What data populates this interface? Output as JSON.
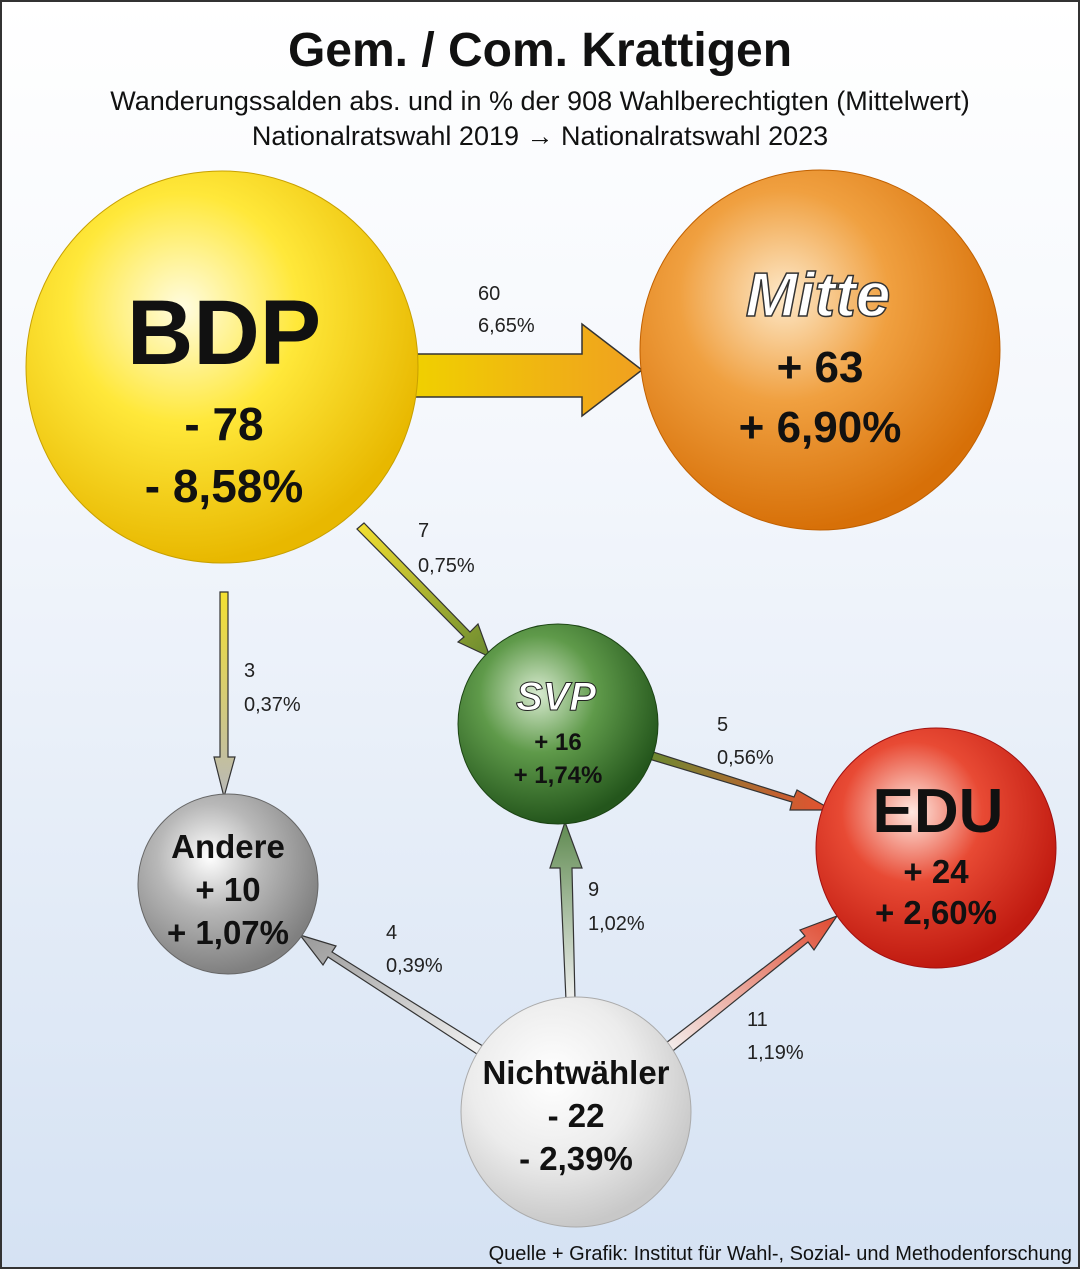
{
  "title": "Gem. / Com. Krattigen",
  "subtitle1": "Wanderungssalden abs. und in % der 908 Wahlberechtigten (Mittelwert)",
  "subtitle2": "Nationalratswahl 2019 → Nationalratswahl 2023",
  "source": "Quelle + Grafik: Institut für Wahl-, Sozial- und Methodenforschung",
  "nodes": {
    "bdp": {
      "name": "BDP",
      "abs": "- 78",
      "pct": "- 8,58%",
      "color": "#f5d400"
    },
    "mitte": {
      "name": "Mitte",
      "abs": "+ 63",
      "pct": "+ 6,90%",
      "color": "#e8861a"
    },
    "svp": {
      "name": "SVP",
      "abs": "+ 16",
      "pct": "+ 1,74%",
      "color": "#3f7a30"
    },
    "edu": {
      "name": "EDU",
      "abs": "+ 24",
      "pct": "+ 2,60%",
      "color": "#d9261c"
    },
    "andere": {
      "name": "Andere",
      "abs": "+ 10",
      "pct": "+ 1,07%",
      "color": "#9a9a9a"
    },
    "nicht": {
      "name": "Nichtwähler",
      "abs": "- 22",
      "pct": "- 2,39%",
      "color": "#e6e6e6"
    }
  },
  "flows": {
    "bdp_mitte": {
      "abs": "60",
      "pct": "6,65%"
    },
    "bdp_svp": {
      "abs": "7",
      "pct": "0,75%"
    },
    "bdp_andere": {
      "abs": "3",
      "pct": "0,37%"
    },
    "svp_edu": {
      "abs": "5",
      "pct": "0,56%"
    },
    "nicht_svp": {
      "abs": "9",
      "pct": "1,02%"
    },
    "nicht_andere": {
      "abs": "4",
      "pct": "0,39%"
    },
    "nicht_edu": {
      "abs": "11",
      "pct": "1,19%"
    }
  }
}
